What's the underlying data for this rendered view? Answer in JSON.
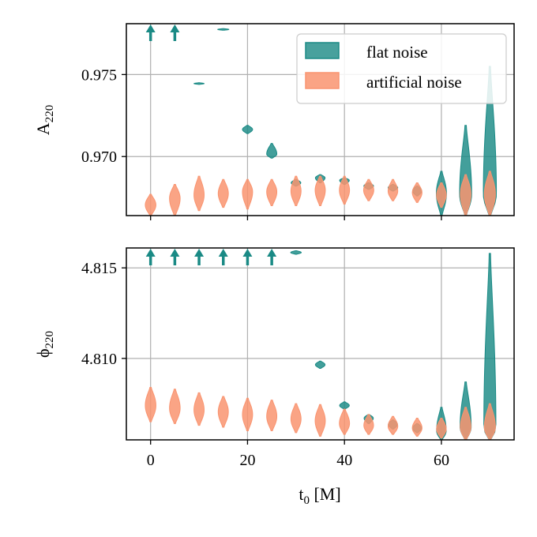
{
  "chart_data": [
    {
      "type": "violin",
      "panel": "top",
      "ylabel": "A",
      "ylabel_sub": "220",
      "ylim": [
        0.9664,
        0.9781
      ],
      "xlim": [
        -5,
        75
      ],
      "yticks": [
        0.97,
        0.975
      ],
      "ytick_labels": [
        "0.970",
        "0.975"
      ],
      "xticks": [
        0,
        20,
        40,
        60
      ],
      "show_x_tick_labels": false,
      "grid": true,
      "legend": {
        "position": "top-right",
        "entries": [
          {
            "label": "flat noise",
            "color": "#1a8a85"
          },
          {
            "label": "artificial noise",
            "color": "#f99470"
          }
        ]
      },
      "series": [
        {
          "name": "flat noise",
          "color": "#1a8a85",
          "arrows_up_at": [
            0,
            5
          ],
          "violins": [
            {
              "t0": 15,
              "median": 0.97775,
              "low": 0.9777,
              "high": 0.9778,
              "width": 2.0
            },
            {
              "t0": 10,
              "median": 0.97445,
              "low": 0.9744,
              "high": 0.9745,
              "width": 1.8
            },
            {
              "t0": 20,
              "median": 0.97165,
              "low": 0.9714,
              "high": 0.9719,
              "width": 1.8
            },
            {
              "t0": 25,
              "median": 0.97015,
              "low": 0.9699,
              "high": 0.9708,
              "width": 1.8
            },
            {
              "t0": 30,
              "median": 0.9684,
              "low": 0.9682,
              "high": 0.9686,
              "width": 1.7
            },
            {
              "t0": 35,
              "median": 0.9687,
              "low": 0.9684,
              "high": 0.9689,
              "width": 1.7
            },
            {
              "t0": 40,
              "median": 0.96855,
              "low": 0.9683,
              "high": 0.9687,
              "width": 1.7
            },
            {
              "t0": 45,
              "median": 0.9682,
              "low": 0.968,
              "high": 0.9684,
              "width": 1.7
            },
            {
              "t0": 50,
              "median": 0.9681,
              "low": 0.9679,
              "high": 0.9683,
              "width": 1.7
            },
            {
              "t0": 55,
              "median": 0.9679,
              "low": 0.9676,
              "high": 0.9682,
              "width": 1.6
            },
            {
              "t0": 60,
              "median": 0.96775,
              "low": 0.9664,
              "high": 0.9691,
              "width": 1.8
            },
            {
              "t0": 65,
              "median": 0.9677,
              "low": 0.9664,
              "high": 0.9719,
              "width": 2.2
            },
            {
              "t0": 70,
              "median": 0.9677,
              "low": 0.9664,
              "high": 0.9755,
              "width": 2.4
            }
          ]
        },
        {
          "name": "artificial noise",
          "color": "#f99470",
          "violins": [
            {
              "t0": 0,
              "median": 0.96705,
              "low": 0.9664,
              "high": 0.9677,
              "width": 1.9
            },
            {
              "t0": 5,
              "median": 0.96745,
              "low": 0.9664,
              "high": 0.9683,
              "width": 1.9
            },
            {
              "t0": 10,
              "median": 0.96765,
              "low": 0.9667,
              "high": 0.9688,
              "width": 1.8
            },
            {
              "t0": 15,
              "median": 0.96775,
              "low": 0.9669,
              "high": 0.9686,
              "width": 1.8
            },
            {
              "t0": 20,
              "median": 0.96785,
              "low": 0.9668,
              "high": 0.9686,
              "width": 1.8
            },
            {
              "t0": 25,
              "median": 0.96785,
              "low": 0.967,
              "high": 0.9686,
              "width": 1.8
            },
            {
              "t0": 30,
              "median": 0.9679,
              "low": 0.967,
              "high": 0.9688,
              "width": 1.8
            },
            {
              "t0": 35,
              "median": 0.96795,
              "low": 0.967,
              "high": 0.9688,
              "width": 1.8
            },
            {
              "t0": 40,
              "median": 0.96795,
              "low": 0.9671,
              "high": 0.9688,
              "width": 1.8
            },
            {
              "t0": 45,
              "median": 0.96795,
              "low": 0.9673,
              "high": 0.9686,
              "width": 1.8
            },
            {
              "t0": 50,
              "median": 0.9679,
              "low": 0.9673,
              "high": 0.9686,
              "width": 1.7
            },
            {
              "t0": 55,
              "median": 0.9678,
              "low": 0.9672,
              "high": 0.9684,
              "width": 1.7
            },
            {
              "t0": 60,
              "median": 0.96765,
              "low": 0.9669,
              "high": 0.9684,
              "width": 1.7
            },
            {
              "t0": 65,
              "median": 0.9677,
              "low": 0.9664,
              "high": 0.9689,
              "width": 1.9
            },
            {
              "t0": 70,
              "median": 0.9677,
              "low": 0.9664,
              "high": 0.9691,
              "width": 2.0
            }
          ]
        }
      ]
    },
    {
      "type": "violin",
      "panel": "bottom",
      "ylabel": "ϕ",
      "ylabel_sub": "220",
      "ylim": [
        4.8055,
        4.8161
      ],
      "xlim": [
        -5,
        75
      ],
      "yticks": [
        4.81,
        4.815
      ],
      "ytick_labels": [
        "4.810",
        "4.815"
      ],
      "xticks": [
        0,
        20,
        40,
        60
      ],
      "xtick_labels": [
        "0",
        "20",
        "40",
        "60"
      ],
      "xlabel": "t",
      "xlabel_sub": "0",
      "xlabel_unit": " [M]",
      "grid": true,
      "series": [
        {
          "name": "flat noise",
          "color": "#1a8a85",
          "arrows_up_at": [
            0,
            5,
            10,
            15,
            20,
            25
          ],
          "violins": [
            {
              "t0": 30,
              "median": 4.81585,
              "low": 4.81575,
              "high": 4.81595,
              "width": 1.9
            },
            {
              "t0": 35,
              "median": 4.80965,
              "low": 4.80945,
              "high": 4.80985,
              "width": 1.7
            },
            {
              "t0": 40,
              "median": 4.8074,
              "low": 4.8072,
              "high": 4.8076,
              "width": 1.7
            },
            {
              "t0": 45,
              "median": 4.8067,
              "low": 4.8064,
              "high": 4.8069,
              "width": 1.6
            },
            {
              "t0": 50,
              "median": 4.80635,
              "low": 4.8061,
              "high": 4.8066,
              "width": 1.6
            },
            {
              "t0": 55,
              "median": 4.80615,
              "low": 4.8059,
              "high": 4.8064,
              "width": 1.6
            },
            {
              "t0": 60,
              "median": 4.806,
              "low": 4.8055,
              "high": 4.8073,
              "width": 1.7
            },
            {
              "t0": 65,
              "median": 4.8062,
              "low": 4.8055,
              "high": 4.8087,
              "width": 2.0
            },
            {
              "t0": 70,
              "median": 4.8062,
              "low": 4.8055,
              "high": 4.8158,
              "width": 2.2
            }
          ]
        },
        {
          "name": "artificial noise",
          "color": "#f99470",
          "violins": [
            {
              "t0": 0,
              "median": 4.8074,
              "low": 4.8065,
              "high": 4.8084,
              "width": 1.9
            },
            {
              "t0": 5,
              "median": 4.80725,
              "low": 4.8064,
              "high": 4.8083,
              "width": 1.9
            },
            {
              "t0": 10,
              "median": 4.80715,
              "low": 4.8063,
              "high": 4.8081,
              "width": 1.8
            },
            {
              "t0": 15,
              "median": 4.80705,
              "low": 4.8062,
              "high": 4.8079,
              "width": 1.8
            },
            {
              "t0": 20,
              "median": 4.8069,
              "low": 4.806,
              "high": 4.8078,
              "width": 1.8
            },
            {
              "t0": 25,
              "median": 4.8068,
              "low": 4.806,
              "high": 4.8077,
              "width": 1.8
            },
            {
              "t0": 30,
              "median": 4.80665,
              "low": 4.8059,
              "high": 4.8075,
              "width": 1.8
            },
            {
              "t0": 35,
              "median": 4.80655,
              "low": 4.8057,
              "high": 4.80745,
              "width": 1.8
            },
            {
              "t0": 40,
              "median": 4.8064,
              "low": 4.8058,
              "high": 4.8072,
              "width": 1.8
            },
            {
              "t0": 45,
              "median": 4.8063,
              "low": 4.8058,
              "high": 4.8069,
              "width": 1.7
            },
            {
              "t0": 50,
              "median": 4.80625,
              "low": 4.8058,
              "high": 4.8068,
              "width": 1.7
            },
            {
              "t0": 55,
              "median": 4.80615,
              "low": 4.8057,
              "high": 4.8067,
              "width": 1.7
            },
            {
              "t0": 60,
              "median": 4.8061,
              "low": 4.8056,
              "high": 4.8067,
              "width": 1.7
            },
            {
              "t0": 65,
              "median": 4.8062,
              "low": 4.8055,
              "high": 4.8073,
              "width": 1.9
            },
            {
              "t0": 70,
              "median": 4.8062,
              "low": 4.8055,
              "high": 4.8075,
              "width": 2.0
            }
          ]
        }
      ]
    }
  ]
}
